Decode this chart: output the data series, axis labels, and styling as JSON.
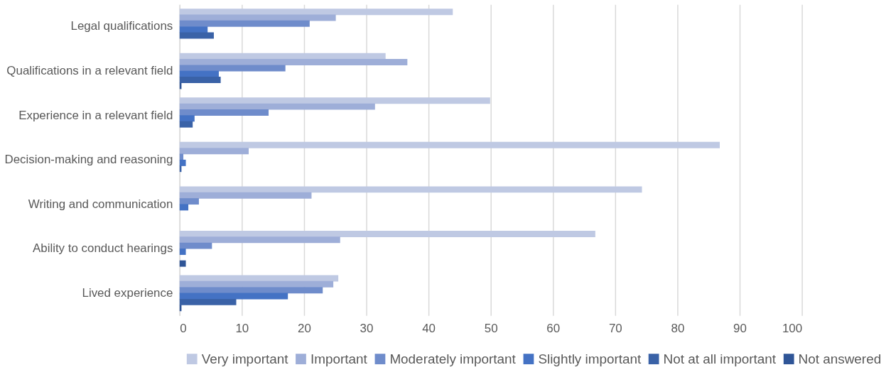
{
  "chart_data": {
    "type": "bar",
    "orientation": "horizontal",
    "categories": [
      "Legal qualifications",
      "Qualifications in a relevant field",
      "Experience in a relevant field",
      "Decision-making and reasoning",
      "Writing and communication",
      "Ability to conduct hearings",
      "Lived experience"
    ],
    "series": [
      {
        "name": "Very important",
        "color": "#bfc9e3",
        "values": [
          43.9,
          33.1,
          49.9,
          86.8,
          74.3,
          66.8,
          25.5
        ]
      },
      {
        "name": "Important",
        "color": "#9eaed8",
        "values": [
          25.1,
          36.6,
          31.4,
          11.1,
          21.2,
          25.8,
          24.7
        ]
      },
      {
        "name": "Moderately important",
        "color": "#6f8ccb",
        "values": [
          20.9,
          17.0,
          14.3,
          0.6,
          3.1,
          5.2,
          23.0
        ]
      },
      {
        "name": "Slightly important",
        "color": "#4472c4",
        "values": [
          4.5,
          6.3,
          2.4,
          1.0,
          1.4,
          1.0,
          17.4
        ]
      },
      {
        "name": "Not at all important",
        "color": "#3a62a7",
        "values": [
          5.5,
          6.6,
          2.1,
          0.3,
          0,
          0,
          9.1
        ]
      },
      {
        "name": "Not answered",
        "color": "#2f5597",
        "values": [
          0,
          0.3,
          0,
          0,
          0,
          1.0,
          0.3
        ]
      }
    ],
    "xlim": [
      0,
      100
    ],
    "xticks": [
      0,
      10,
      20,
      30,
      40,
      50,
      60,
      70,
      80,
      90,
      100
    ],
    "grid": "x",
    "legend": "bottom"
  }
}
